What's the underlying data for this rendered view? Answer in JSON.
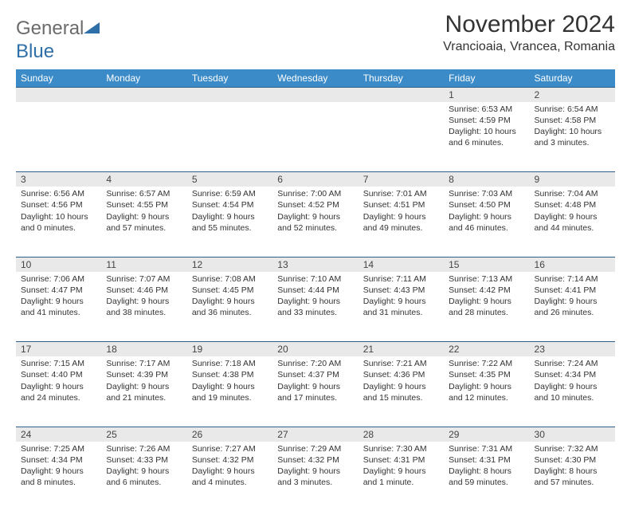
{
  "brand": {
    "general": "General",
    "blue": "Blue"
  },
  "title": "November 2024",
  "location": "Vrancioaia, Vrancea, Romania",
  "colors": {
    "header_bg": "#3b8bc8",
    "header_text": "#ffffff",
    "daynum_bg": "#e9e9e9",
    "border": "#2f5e86",
    "title_color": "#333333",
    "body_text": "#333333",
    "logo_gray": "#6b6b6b",
    "logo_blue": "#2f6fa8"
  },
  "day_headers": [
    "Sunday",
    "Monday",
    "Tuesday",
    "Wednesday",
    "Thursday",
    "Friday",
    "Saturday"
  ],
  "weeks": [
    {
      "nums": [
        "",
        "",
        "",
        "",
        "",
        "1",
        "2"
      ],
      "cells": [
        null,
        null,
        null,
        null,
        null,
        {
          "sunrise": "Sunrise: 6:53 AM",
          "sunset": "Sunset: 4:59 PM",
          "daylight": "Daylight: 10 hours and 6 minutes."
        },
        {
          "sunrise": "Sunrise: 6:54 AM",
          "sunset": "Sunset: 4:58 PM",
          "daylight": "Daylight: 10 hours and 3 minutes."
        }
      ]
    },
    {
      "nums": [
        "3",
        "4",
        "5",
        "6",
        "7",
        "8",
        "9"
      ],
      "cells": [
        {
          "sunrise": "Sunrise: 6:56 AM",
          "sunset": "Sunset: 4:56 PM",
          "daylight": "Daylight: 10 hours and 0 minutes."
        },
        {
          "sunrise": "Sunrise: 6:57 AM",
          "sunset": "Sunset: 4:55 PM",
          "daylight": "Daylight: 9 hours and 57 minutes."
        },
        {
          "sunrise": "Sunrise: 6:59 AM",
          "sunset": "Sunset: 4:54 PM",
          "daylight": "Daylight: 9 hours and 55 minutes."
        },
        {
          "sunrise": "Sunrise: 7:00 AM",
          "sunset": "Sunset: 4:52 PM",
          "daylight": "Daylight: 9 hours and 52 minutes."
        },
        {
          "sunrise": "Sunrise: 7:01 AM",
          "sunset": "Sunset: 4:51 PM",
          "daylight": "Daylight: 9 hours and 49 minutes."
        },
        {
          "sunrise": "Sunrise: 7:03 AM",
          "sunset": "Sunset: 4:50 PM",
          "daylight": "Daylight: 9 hours and 46 minutes."
        },
        {
          "sunrise": "Sunrise: 7:04 AM",
          "sunset": "Sunset: 4:48 PM",
          "daylight": "Daylight: 9 hours and 44 minutes."
        }
      ]
    },
    {
      "nums": [
        "10",
        "11",
        "12",
        "13",
        "14",
        "15",
        "16"
      ],
      "cells": [
        {
          "sunrise": "Sunrise: 7:06 AM",
          "sunset": "Sunset: 4:47 PM",
          "daylight": "Daylight: 9 hours and 41 minutes."
        },
        {
          "sunrise": "Sunrise: 7:07 AM",
          "sunset": "Sunset: 4:46 PM",
          "daylight": "Daylight: 9 hours and 38 minutes."
        },
        {
          "sunrise": "Sunrise: 7:08 AM",
          "sunset": "Sunset: 4:45 PM",
          "daylight": "Daylight: 9 hours and 36 minutes."
        },
        {
          "sunrise": "Sunrise: 7:10 AM",
          "sunset": "Sunset: 4:44 PM",
          "daylight": "Daylight: 9 hours and 33 minutes."
        },
        {
          "sunrise": "Sunrise: 7:11 AM",
          "sunset": "Sunset: 4:43 PM",
          "daylight": "Daylight: 9 hours and 31 minutes."
        },
        {
          "sunrise": "Sunrise: 7:13 AM",
          "sunset": "Sunset: 4:42 PM",
          "daylight": "Daylight: 9 hours and 28 minutes."
        },
        {
          "sunrise": "Sunrise: 7:14 AM",
          "sunset": "Sunset: 4:41 PM",
          "daylight": "Daylight: 9 hours and 26 minutes."
        }
      ]
    },
    {
      "nums": [
        "17",
        "18",
        "19",
        "20",
        "21",
        "22",
        "23"
      ],
      "cells": [
        {
          "sunrise": "Sunrise: 7:15 AM",
          "sunset": "Sunset: 4:40 PM",
          "daylight": "Daylight: 9 hours and 24 minutes."
        },
        {
          "sunrise": "Sunrise: 7:17 AM",
          "sunset": "Sunset: 4:39 PM",
          "daylight": "Daylight: 9 hours and 21 minutes."
        },
        {
          "sunrise": "Sunrise: 7:18 AM",
          "sunset": "Sunset: 4:38 PM",
          "daylight": "Daylight: 9 hours and 19 minutes."
        },
        {
          "sunrise": "Sunrise: 7:20 AM",
          "sunset": "Sunset: 4:37 PM",
          "daylight": "Daylight: 9 hours and 17 minutes."
        },
        {
          "sunrise": "Sunrise: 7:21 AM",
          "sunset": "Sunset: 4:36 PM",
          "daylight": "Daylight: 9 hours and 15 minutes."
        },
        {
          "sunrise": "Sunrise: 7:22 AM",
          "sunset": "Sunset: 4:35 PM",
          "daylight": "Daylight: 9 hours and 12 minutes."
        },
        {
          "sunrise": "Sunrise: 7:24 AM",
          "sunset": "Sunset: 4:34 PM",
          "daylight": "Daylight: 9 hours and 10 minutes."
        }
      ]
    },
    {
      "nums": [
        "24",
        "25",
        "26",
        "27",
        "28",
        "29",
        "30"
      ],
      "cells": [
        {
          "sunrise": "Sunrise: 7:25 AM",
          "sunset": "Sunset: 4:34 PM",
          "daylight": "Daylight: 9 hours and 8 minutes."
        },
        {
          "sunrise": "Sunrise: 7:26 AM",
          "sunset": "Sunset: 4:33 PM",
          "daylight": "Daylight: 9 hours and 6 minutes."
        },
        {
          "sunrise": "Sunrise: 7:27 AM",
          "sunset": "Sunset: 4:32 PM",
          "daylight": "Daylight: 9 hours and 4 minutes."
        },
        {
          "sunrise": "Sunrise: 7:29 AM",
          "sunset": "Sunset: 4:32 PM",
          "daylight": "Daylight: 9 hours and 3 minutes."
        },
        {
          "sunrise": "Sunrise: 7:30 AM",
          "sunset": "Sunset: 4:31 PM",
          "daylight": "Daylight: 9 hours and 1 minute."
        },
        {
          "sunrise": "Sunrise: 7:31 AM",
          "sunset": "Sunset: 4:31 PM",
          "daylight": "Daylight: 8 hours and 59 minutes."
        },
        {
          "sunrise": "Sunrise: 7:32 AM",
          "sunset": "Sunset: 4:30 PM",
          "daylight": "Daylight: 8 hours and 57 minutes."
        }
      ]
    }
  ]
}
